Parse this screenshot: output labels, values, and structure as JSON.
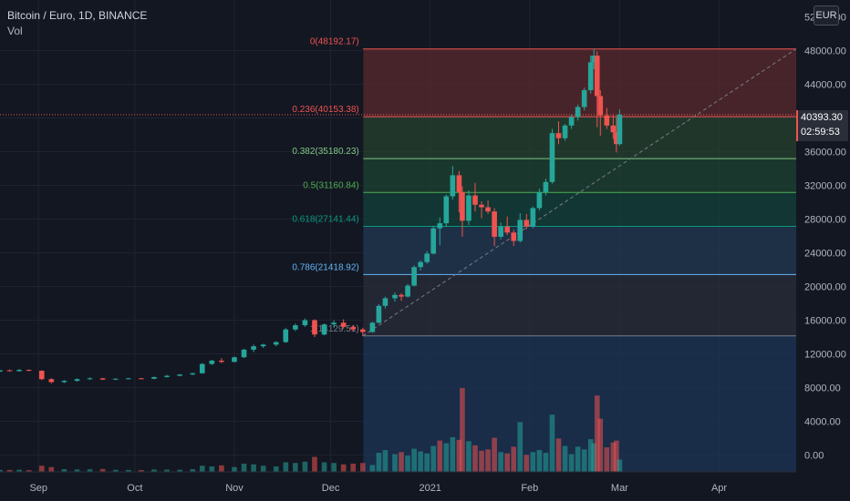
{
  "header": {
    "symbol": "Bitcoin / Euro, 1D, BINANCE",
    "volume_label": "Vol"
  },
  "currency_badge": "EUR",
  "last_price_tag": {
    "price": "40393.30",
    "countdown": "02:59:53"
  },
  "chart_data": {
    "type": "candlestick",
    "y_axis": {
      "min": -2000,
      "max": 54000,
      "ticks": [
        "48000.00",
        "44000.00",
        "40000.00",
        "36000.00",
        "32000.00",
        "28000.00",
        "24000.00",
        "20000.00",
        "16000.00",
        "12000.00",
        "8000.00",
        "4000.00",
        "0.00"
      ],
      "tick_values": [
        48000,
        44000,
        40000,
        36000,
        32000,
        28000,
        24000,
        20000,
        16000,
        12000,
        8000,
        4000,
        0
      ],
      "top_cut_label": "52000.00"
    },
    "x_axis": {
      "labels": [
        "Sep",
        "Oct",
        "Nov",
        "Dec",
        "2021",
        "Feb",
        "Mar",
        "Apr"
      ],
      "label_dates": [
        "2020-09-01",
        "2020-10-01",
        "2020-11-01",
        "2020-12-01",
        "2021-01-01",
        "2021-02-01",
        "2021-03-01",
        "2021-04-01"
      ],
      "start": "2020-08-20",
      "end": "2021-04-25"
    },
    "fibonacci": {
      "start_date": "2020-12-11",
      "end_date": "2021-04-25",
      "levels": [
        {
          "label": "0(48192.17)",
          "value": 48192.17,
          "color": "#ef5350",
          "fill": "#5a2a2e"
        },
        {
          "label": "0.236(40153.38)",
          "value": 40153.38,
          "color": "#ef5350",
          "fill": "#27412f"
        },
        {
          "label": "0.382(35180.23)",
          "value": 35180.23,
          "color": "#81c784",
          "fill": "#1e4331"
        },
        {
          "label": "0.5(31160.84)",
          "value": 31160.84,
          "color": "#4caf50",
          "fill": "#134139"
        },
        {
          "label": "0.618(27141.44)",
          "value": 27141.44,
          "color": "#089981",
          "fill": "#233953"
        },
        {
          "label": "0.786(21418.92)",
          "value": 21418.92,
          "color": "#64b5f6",
          "fill": "#2a2e3b"
        },
        {
          "label": "1(14129.51)",
          "value": 14129.51,
          "color": "#787b86",
          "fill": "#1c3456"
        }
      ],
      "trend_line": {
        "from_date": "2020-12-11",
        "from_value": 14129.51,
        "to_date": "2021-04-25",
        "to_value": 48192.17
      }
    },
    "current_price": 40393.3,
    "colors": {
      "up": "#26a69a",
      "down": "#ef5350",
      "grid": "#1f2330",
      "background": "#131722"
    },
    "ohlc": [
      [
        "2020-08-20",
        9900,
        10100,
        9850,
        10050
      ],
      [
        "2020-08-23",
        10050,
        10150,
        9900,
        9950
      ],
      [
        "2020-08-26",
        9950,
        10200,
        9900,
        10100
      ],
      [
        "2020-08-29",
        10100,
        10150,
        9950,
        10000
      ],
      [
        "2020-09-02",
        10000,
        10050,
        8900,
        9000
      ],
      [
        "2020-09-05",
        9000,
        9100,
        8500,
        8650
      ],
      [
        "2020-09-09",
        8650,
        8900,
        8550,
        8800
      ],
      [
        "2020-09-13",
        8800,
        9100,
        8700,
        9000
      ],
      [
        "2020-09-17",
        9000,
        9200,
        8900,
        9100
      ],
      [
        "2020-09-21",
        9100,
        9150,
        8900,
        8950
      ],
      [
        "2020-09-25",
        8950,
        9100,
        8900,
        9050
      ],
      [
        "2020-09-29",
        9050,
        9150,
        9000,
        9100
      ],
      [
        "2020-10-03",
        9100,
        9150,
        9000,
        9050
      ],
      [
        "2020-10-07",
        9050,
        9300,
        9000,
        9250
      ],
      [
        "2020-10-11",
        9250,
        9500,
        9200,
        9400
      ],
      [
        "2020-10-15",
        9400,
        9600,
        9350,
        9550
      ],
      [
        "2020-10-19",
        9550,
        9750,
        9500,
        9700
      ],
      [
        "2020-10-22",
        9700,
        10900,
        9650,
        10800
      ],
      [
        "2020-10-25",
        10800,
        11300,
        10700,
        11200
      ],
      [
        "2020-10-28",
        11200,
        11500,
        10900,
        11050
      ],
      [
        "2020-11-01",
        11050,
        11700,
        11000,
        11600
      ],
      [
        "2020-11-04",
        11600,
        12600,
        11500,
        12500
      ],
      [
        "2020-11-07",
        12500,
        13100,
        12200,
        12900
      ],
      [
        "2020-11-10",
        12900,
        13200,
        12700,
        13100
      ],
      [
        "2020-11-14",
        13100,
        13500,
        12900,
        13400
      ],
      [
        "2020-11-17",
        13400,
        15100,
        13300,
        14900
      ],
      [
        "2020-11-20",
        14900,
        15600,
        14700,
        15400
      ],
      [
        "2020-11-23",
        15400,
        16200,
        15200,
        16000
      ],
      [
        "2020-11-26",
        16000,
        16100,
        14000,
        14300
      ],
      [
        "2020-11-29",
        14300,
        15600,
        14200,
        15500
      ],
      [
        "2020-12-02",
        15500,
        16000,
        15100,
        15700
      ],
      [
        "2020-12-05",
        15700,
        16100,
        15000,
        15200
      ],
      [
        "2020-12-08",
        15200,
        15400,
        14700,
        14900
      ],
      [
        "2020-12-11",
        14900,
        15100,
        14100,
        14600
      ],
      [
        "2020-12-14",
        14600,
        15800,
        14500,
        15700
      ],
      [
        "2020-12-16",
        15700,
        17900,
        15600,
        17700
      ],
      [
        "2020-12-18",
        17700,
        18800,
        17400,
        18600
      ],
      [
        "2020-12-21",
        18600,
        19300,
        18200,
        19000
      ],
      [
        "2020-12-23",
        19000,
        19200,
        18300,
        18800
      ],
      [
        "2020-12-25",
        18800,
        20300,
        18700,
        20100
      ],
      [
        "2020-12-27",
        20100,
        22500,
        20000,
        22300
      ],
      [
        "2020-12-29",
        22300,
        23100,
        21900,
        22900
      ],
      [
        "2020-12-31",
        22900,
        24200,
        22700,
        23900
      ],
      [
        "2021-01-02",
        23900,
        27200,
        23800,
        26900
      ],
      [
        "2021-01-04",
        26900,
        28200,
        24900,
        27500
      ],
      [
        "2021-01-06",
        27500,
        30900,
        27100,
        30700
      ],
      [
        "2021-01-08",
        30700,
        34300,
        30300,
        33200
      ],
      [
        "2021-01-10",
        33200,
        33700,
        28800,
        31200
      ],
      [
        "2021-01-11",
        31200,
        31900,
        25900,
        27800
      ],
      [
        "2021-01-13",
        27800,
        31400,
        27300,
        30800
      ],
      [
        "2021-01-15",
        30800,
        32300,
        28900,
        29700
      ],
      [
        "2021-01-17",
        29700,
        30100,
        28100,
        29400
      ],
      [
        "2021-01-19",
        29400,
        30200,
        28600,
        28900
      ],
      [
        "2021-01-21",
        28900,
        29300,
        24800,
        25900
      ],
      [
        "2021-01-23",
        25900,
        27600,
        25600,
        27100
      ],
      [
        "2021-01-25",
        27100,
        28300,
        26100,
        26400
      ],
      [
        "2021-01-27",
        26400,
        26700,
        24800,
        25400
      ],
      [
        "2021-01-29",
        25400,
        28700,
        25200,
        27900
      ],
      [
        "2021-01-31",
        27900,
        28600,
        26800,
        27100
      ],
      [
        "2021-02-02",
        27100,
        29500,
        26900,
        29300
      ],
      [
        "2021-02-04",
        29300,
        31600,
        29000,
        31200
      ],
      [
        "2021-02-06",
        31200,
        32800,
        30800,
        32400
      ],
      [
        "2021-02-08",
        32400,
        38700,
        32200,
        38200
      ],
      [
        "2021-02-10",
        38200,
        39600,
        36900,
        37600
      ],
      [
        "2021-02-12",
        37600,
        39300,
        37300,
        39100
      ],
      [
        "2021-02-14",
        39100,
        40400,
        38700,
        40100
      ],
      [
        "2021-02-16",
        40100,
        41600,
        39700,
        41300
      ],
      [
        "2021-02-18",
        41300,
        43600,
        40900,
        43300
      ],
      [
        "2021-02-20",
        43300,
        47400,
        42900,
        46600
      ],
      [
        "2021-02-21",
        46600,
        48192,
        45800,
        47400
      ],
      [
        "2021-02-22",
        47400,
        47900,
        38900,
        42600
      ],
      [
        "2021-02-23",
        42600,
        43300,
        37900,
        40300
      ],
      [
        "2021-02-25",
        40300,
        41200,
        38700,
        39100
      ],
      [
        "2021-02-27",
        39100,
        40400,
        37500,
        38300
      ],
      [
        "2021-02-28",
        38300,
        40100,
        35900,
        36900
      ],
      [
        "2021-03-01",
        36900,
        41000,
        36700,
        40393
      ]
    ],
    "volume_scale_max": 12300,
    "volume": [
      [
        "2020-08-20",
        300,
        1
      ],
      [
        "2020-08-23",
        280,
        0
      ],
      [
        "2020-08-26",
        320,
        1
      ],
      [
        "2020-08-29",
        250,
        0
      ],
      [
        "2020-09-02",
        900,
        0
      ],
      [
        "2020-09-05",
        700,
        0
      ],
      [
        "2020-09-09",
        400,
        1
      ],
      [
        "2020-09-13",
        350,
        1
      ],
      [
        "2020-09-17",
        380,
        1
      ],
      [
        "2020-09-21",
        420,
        0
      ],
      [
        "2020-09-25",
        300,
        1
      ],
      [
        "2020-09-29",
        280,
        1
      ],
      [
        "2020-10-03",
        260,
        0
      ],
      [
        "2020-10-07",
        350,
        1
      ],
      [
        "2020-10-11",
        330,
        1
      ],
      [
        "2020-10-15",
        310,
        1
      ],
      [
        "2020-10-19",
        400,
        1
      ],
      [
        "2020-10-22",
        900,
        1
      ],
      [
        "2020-10-25",
        800,
        1
      ],
      [
        "2020-10-28",
        950,
        0
      ],
      [
        "2020-11-01",
        700,
        1
      ],
      [
        "2020-11-04",
        1200,
        1
      ],
      [
        "2020-11-07",
        1100,
        1
      ],
      [
        "2020-11-10",
        900,
        1
      ],
      [
        "2020-11-14",
        800,
        1
      ],
      [
        "2020-11-17",
        1400,
        1
      ],
      [
        "2020-11-20",
        1300,
        1
      ],
      [
        "2020-11-23",
        1500,
        1
      ],
      [
        "2020-11-26",
        2200,
        0
      ],
      [
        "2020-11-29",
        1400,
        1
      ],
      [
        "2020-12-02",
        1300,
        1
      ],
      [
        "2020-12-05",
        1100,
        0
      ],
      [
        "2020-12-08",
        1200,
        0
      ],
      [
        "2020-12-11",
        1300,
        0
      ],
      [
        "2020-12-14",
        1000,
        1
      ],
      [
        "2020-12-16",
        2800,
        1
      ],
      [
        "2020-12-18",
        3200,
        1
      ],
      [
        "2020-12-21",
        2600,
        1
      ],
      [
        "2020-12-23",
        2900,
        0
      ],
      [
        "2020-12-25",
        2400,
        1
      ],
      [
        "2020-12-27",
        3400,
        1
      ],
      [
        "2020-12-29",
        3000,
        1
      ],
      [
        "2020-12-31",
        2700,
        1
      ],
      [
        "2021-01-02",
        3800,
        1
      ],
      [
        "2021-01-04",
        4600,
        0
      ],
      [
        "2021-01-06",
        4200,
        1
      ],
      [
        "2021-01-08",
        5100,
        1
      ],
      [
        "2021-01-10",
        4700,
        0
      ],
      [
        "2021-01-11",
        12300,
        0
      ],
      [
        "2021-01-13",
        4500,
        1
      ],
      [
        "2021-01-15",
        3900,
        0
      ],
      [
        "2021-01-17",
        3100,
        0
      ],
      [
        "2021-01-19",
        3300,
        0
      ],
      [
        "2021-01-21",
        5000,
        0
      ],
      [
        "2021-01-23",
        2900,
        1
      ],
      [
        "2021-01-25",
        2700,
        0
      ],
      [
        "2021-01-27",
        3700,
        0
      ],
      [
        "2021-01-29",
        7300,
        1
      ],
      [
        "2021-01-31",
        2500,
        0
      ],
      [
        "2021-02-02",
        2900,
        1
      ],
      [
        "2021-02-04",
        3200,
        1
      ],
      [
        "2021-02-06",
        2800,
        1
      ],
      [
        "2021-02-08",
        8400,
        1
      ],
      [
        "2021-02-10",
        4900,
        0
      ],
      [
        "2021-02-12",
        3800,
        1
      ],
      [
        "2021-02-14",
        2600,
        1
      ],
      [
        "2021-02-16",
        3700,
        1
      ],
      [
        "2021-02-18",
        3300,
        1
      ],
      [
        "2021-02-20",
        4800,
        1
      ],
      [
        "2021-02-21",
        4200,
        1
      ],
      [
        "2021-02-22",
        11200,
        0
      ],
      [
        "2021-02-23",
        7800,
        0
      ],
      [
        "2021-02-25",
        3600,
        0
      ],
      [
        "2021-02-27",
        4300,
        0
      ],
      [
        "2021-02-28",
        4600,
        0
      ],
      [
        "2021-03-01",
        1800,
        1
      ]
    ]
  }
}
